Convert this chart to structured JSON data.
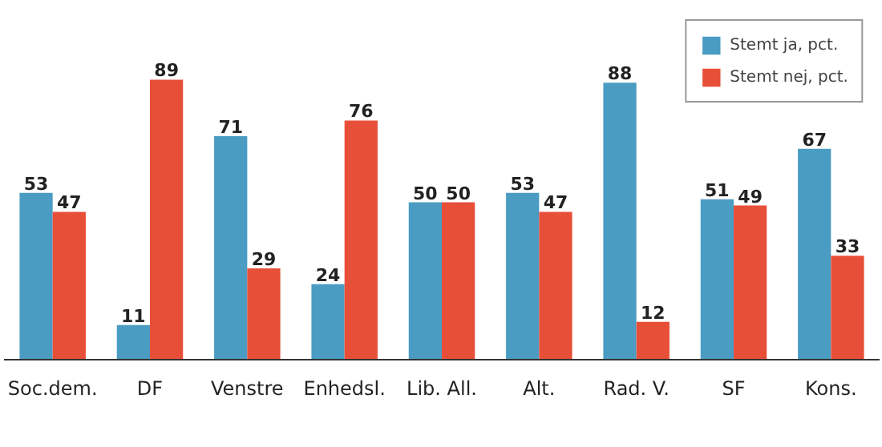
{
  "chart_data": {
    "type": "bar",
    "categories": [
      "Soc.dem.",
      "DF",
      "Venstre",
      "Enhedsl.",
      "Lib. All.",
      "Alt.",
      "Rad. V.",
      "SF",
      "Kons."
    ],
    "series": [
      {
        "name": "Stemt ja, pct.",
        "color": "#4a9cc2",
        "values": [
          53,
          11,
          71,
          24,
          50,
          53,
          88,
          51,
          67
        ]
      },
      {
        "name": "Stemt nej, pct.",
        "color": "#e84f38",
        "values": [
          47,
          89,
          29,
          76,
          50,
          47,
          12,
          49,
          33
        ]
      }
    ],
    "data_labels": true,
    "legend": "top right",
    "grid": false
  }
}
